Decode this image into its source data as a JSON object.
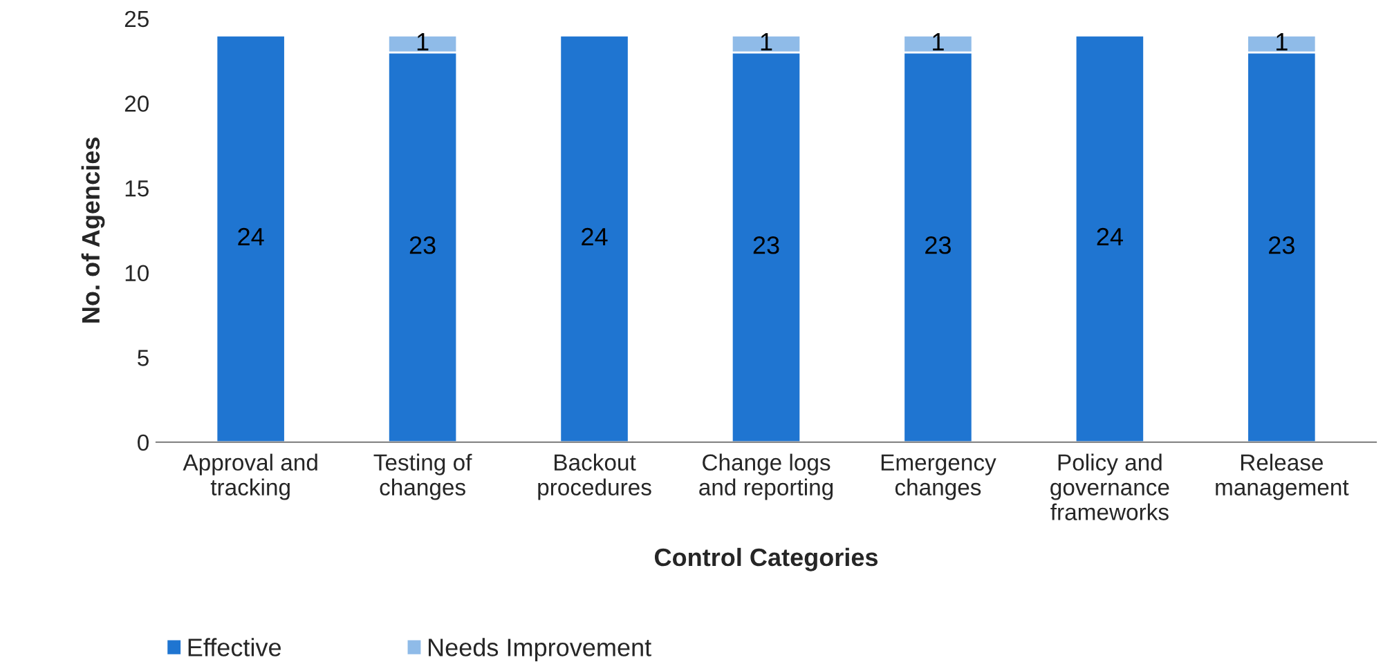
{
  "chart_data": {
    "type": "bar",
    "stacked": true,
    "xlabel": "Control Categories",
    "ylabel": "No. of Agencies",
    "categories": [
      "Approval and\ntracking",
      "Testing of\nchanges",
      "Backout\nprocedures",
      "Change logs\nand reporting",
      "Emergency\nchanges",
      "Policy and\ngovernance\nframeworks",
      "Release\nmanagement"
    ],
    "series": [
      {
        "name": "Effective",
        "color": "#1f75d1",
        "values": [
          24,
          23,
          24,
          23,
          23,
          24,
          23
        ],
        "value_labels": [
          "24",
          "23",
          "24",
          "23",
          "23",
          "24",
          "23"
        ]
      },
      {
        "name": "Needs Improvement",
        "color": "#8fbbe8",
        "values": [
          null,
          1,
          null,
          1,
          1,
          null,
          1
        ],
        "value_labels": [
          null,
          "1",
          null,
          "1",
          "1",
          null,
          "1"
        ]
      }
    ],
    "ylim": [
      0,
      25
    ],
    "yticks": [
      0,
      5,
      10,
      15,
      20,
      25
    ],
    "grid": false,
    "legend": "bottom left"
  }
}
